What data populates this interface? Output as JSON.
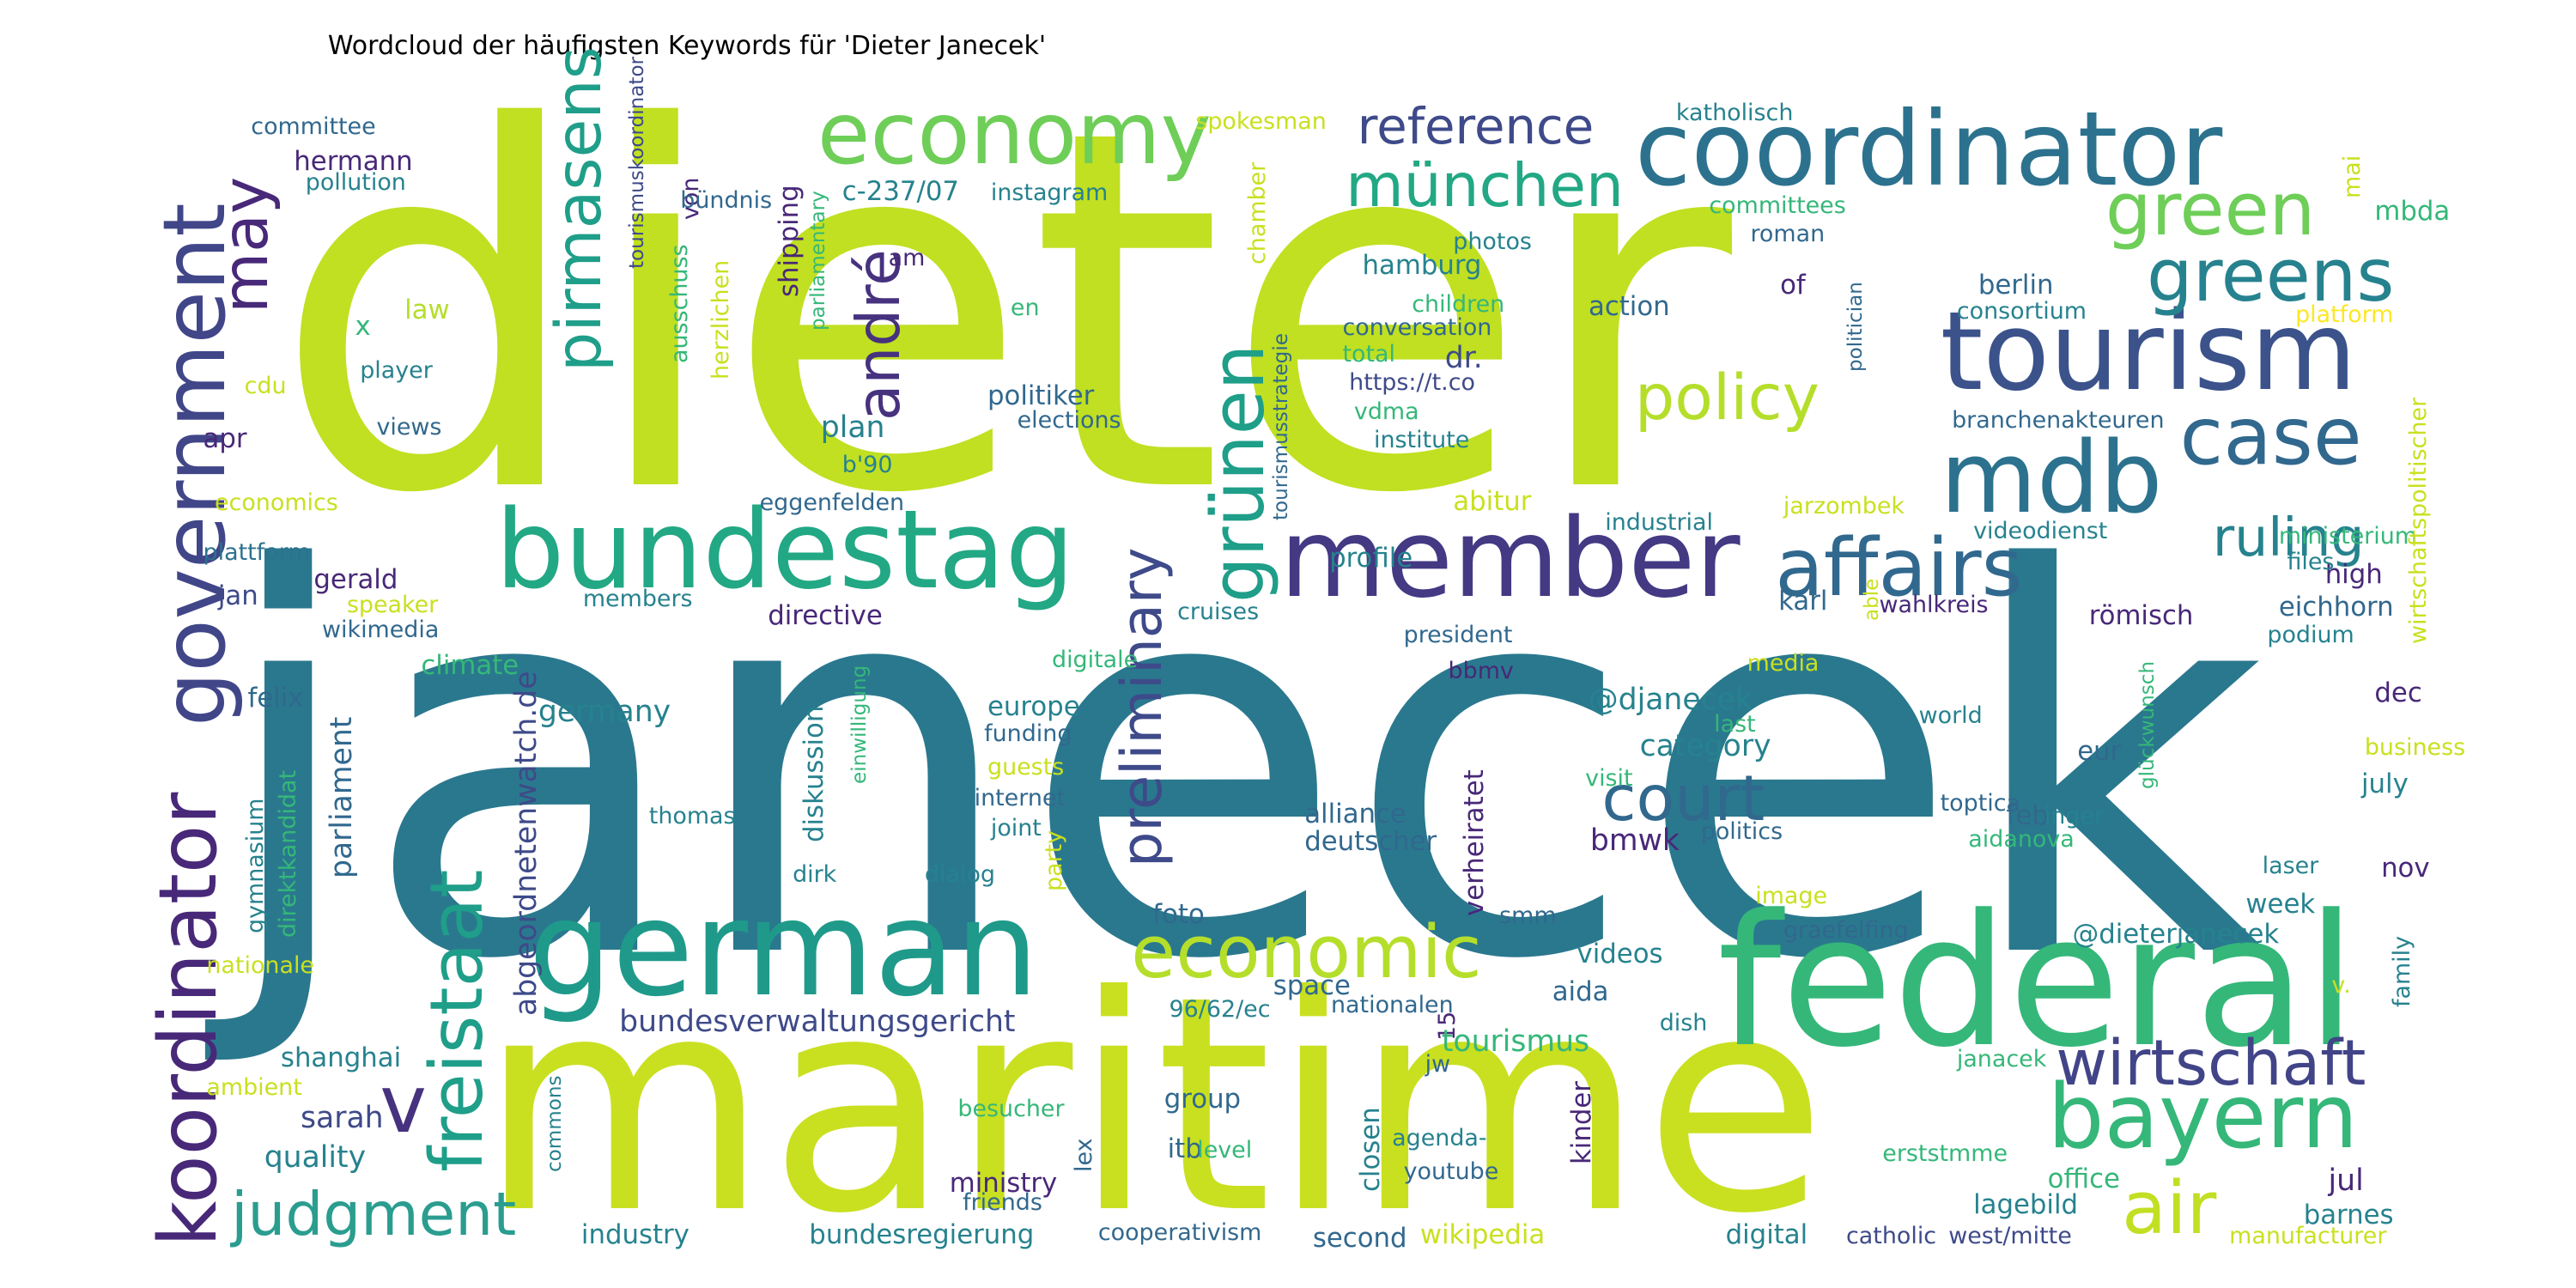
{
  "title": "Wordcloud der häufigsten Keywords für 'Dieter Janecek'",
  "palette": {
    "dark_purple": "#46327e",
    "purple": "#482878",
    "indigo": "#3e4a89",
    "blue": "#31688e",
    "teal": "#26828e",
    "teal_green": "#1f9e89",
    "green": "#35b779",
    "light_green": "#6ece58",
    "lime": "#b5de2b",
    "yellow_green": "#c9e020",
    "yellow": "#fde725"
  },
  "words": [
    {
      "text": "dieter",
      "color": "#c0e021"
    },
    {
      "text": "janecek",
      "color": "#2a788e"
    },
    {
      "text": "maritime",
      "color": "#c9e020"
    },
    {
      "text": "federal",
      "color": "#35b779"
    },
    {
      "text": "coordinator",
      "color": "#2c728e"
    },
    {
      "text": "tourism",
      "color": "#3b528b"
    },
    {
      "text": "bundestag",
      "color": "#22a884"
    },
    {
      "text": "german",
      "color": "#1f9a8a"
    },
    {
      "text": "member",
      "color": "#443983"
    },
    {
      "text": "economy",
      "color": "#6ece58"
    },
    {
      "text": "mdb",
      "color": "#2c728e"
    },
    {
      "text": "government",
      "color": "#404688"
    },
    {
      "text": "koordinator",
      "color": "#482878"
    },
    {
      "text": "freistaat",
      "color": "#1f9e89"
    },
    {
      "text": "affairs",
      "color": "#31688e"
    },
    {
      "text": "bayern",
      "color": "#35b779"
    },
    {
      "text": "green",
      "color": "#6ece58"
    },
    {
      "text": "greens",
      "color": "#26828e"
    },
    {
      "text": "case",
      "color": "#31688e"
    },
    {
      "text": "wirtschaft",
      "color": "#414487"
    },
    {
      "text": "economic",
      "color": "#b5de2b"
    },
    {
      "text": "grünen",
      "color": "#1f9e89"
    },
    {
      "text": "air",
      "color": "#c2df23"
    },
    {
      "text": "policy",
      "color": "#b5de2b"
    },
    {
      "text": "pirmasens",
      "color": "#1f9e89"
    },
    {
      "text": "may",
      "color": "#482878"
    },
    {
      "text": "münchen",
      "color": "#22a884"
    },
    {
      "text": "reference",
      "color": "#3e4a89"
    },
    {
      "text": "ruling",
      "color": "#26828e"
    },
    {
      "text": "judgment",
      "color": "#2a9d8f"
    },
    {
      "text": "preliminary",
      "color": "#3e4a89"
    },
    {
      "text": "court",
      "color": "#31688e"
    },
    {
      "text": "andré",
      "color": "#46327e"
    },
    {
      "text": "v",
      "color": "#46327e"
    },
    {
      "text": "bundesverwaltungsgericht",
      "color": "#3e4a89"
    },
    {
      "text": "committee",
      "color": "#31688e"
    },
    {
      "text": "hermann",
      "color": "#482878"
    },
    {
      "text": "pollution",
      "color": "#26828e"
    },
    {
      "text": "x",
      "color": "#35b779"
    },
    {
      "text": "law",
      "color": "#b5de2b"
    },
    {
      "text": "cdu",
      "color": "#c9e020"
    },
    {
      "text": "player",
      "color": "#26828e"
    },
    {
      "text": "views",
      "color": "#31688e"
    },
    {
      "text": "apr",
      "color": "#482878"
    },
    {
      "text": "economics",
      "color": "#c9e020"
    },
    {
      "text": "plattform",
      "color": "#2c728e"
    },
    {
      "text": "jan",
      "color": "#3e4a89"
    },
    {
      "text": "gerald",
      "color": "#482878"
    },
    {
      "text": "speaker",
      "color": "#c9e020"
    },
    {
      "text": "wikimedia",
      "color": "#31688e"
    },
    {
      "text": "climate",
      "color": "#35b779"
    },
    {
      "text": "felix",
      "color": "#31688e"
    },
    {
      "text": "parliament",
      "color": "#31688e"
    },
    {
      "text": "gymnasium",
      "color": "#26828e"
    },
    {
      "text": "direktkandidat",
      "color": "#35b779"
    },
    {
      "text": "nationale",
      "color": "#c9e020"
    },
    {
      "text": "abgeordnetenwatch.de",
      "color": "#3e4a89"
    },
    {
      "text": "germany",
      "color": "#26828e"
    },
    {
      "text": "shanghai",
      "color": "#26828e"
    },
    {
      "text": "sarah",
      "color": "#3e4a89"
    },
    {
      "text": "quality",
      "color": "#26828e"
    },
    {
      "text": "ambient",
      "color": "#c9e020"
    },
    {
      "text": "commons",
      "color": "#26828e"
    },
    {
      "text": "industry",
      "color": "#26828e"
    },
    {
      "text": "von",
      "color": "#482878"
    },
    {
      "text": "tourismuskoordinator",
      "color": "#3e4a89"
    },
    {
      "text": "ausschuss",
      "color": "#35b779"
    },
    {
      "text": "herzlichen",
      "color": "#c9e020"
    },
    {
      "text": "shipping",
      "color": "#482878"
    },
    {
      "text": "parliamentary",
      "color": "#35b779"
    },
    {
      "text": "bündnis",
      "color": "#31688e"
    },
    {
      "text": "c-237/07",
      "color": "#26828e"
    },
    {
      "text": "instagram",
      "color": "#26828e"
    },
    {
      "text": "am",
      "color": "#482878"
    },
    {
      "text": "en",
      "color": "#35b779"
    },
    {
      "text": "plan",
      "color": "#26828e"
    },
    {
      "text": "b'90",
      "color": "#26828e"
    },
    {
      "text": "politiker",
      "color": "#31688e"
    },
    {
      "text": "elections",
      "color": "#31688e"
    },
    {
      "text": "eggenfelden",
      "color": "#31688e"
    },
    {
      "text": "members",
      "color": "#26828e"
    },
    {
      "text": "directive",
      "color": "#482878"
    },
    {
      "text": "diskussion",
      "color": "#26828e"
    },
    {
      "text": "einwilligung",
      "color": "#35b779"
    },
    {
      "text": "europe",
      "color": "#26828e"
    },
    {
      "text": "funding",
      "color": "#31688e"
    },
    {
      "text": "guests",
      "color": "#c9e020"
    },
    {
      "text": "internet",
      "color": "#31688e"
    },
    {
      "text": "joint",
      "color": "#26828e"
    },
    {
      "text": "thomas",
      "color": "#26828e"
    },
    {
      "text": "dirk",
      "color": "#26828e"
    },
    {
      "text": "dialog",
      "color": "#26828e"
    },
    {
      "text": "party",
      "color": "#c9e020"
    },
    {
      "text": "foto",
      "color": "#31688e"
    },
    {
      "text": "digitale",
      "color": "#35b779"
    },
    {
      "text": "cruises",
      "color": "#26828e"
    },
    {
      "text": "spokesman",
      "color": "#c9e020"
    },
    {
      "text": "chamber",
      "color": "#c9e020"
    },
    {
      "text": "tourismusstrategie",
      "color": "#31688e"
    },
    {
      "text": "hamburg",
      "color": "#26828e"
    },
    {
      "text": "photos",
      "color": "#26828e"
    },
    {
      "text": "children",
      "color": "#35b779"
    },
    {
      "text": "conversation",
      "color": "#31688e"
    },
    {
      "text": "total",
      "color": "#35b779"
    },
    {
      "text": "https://t.co",
      "color": "#3e4a89"
    },
    {
      "text": "vdma",
      "color": "#35b779"
    },
    {
      "text": "institute",
      "color": "#26828e"
    },
    {
      "text": "dr.",
      "color": "#3e4a89"
    },
    {
      "text": "profile",
      "color": "#26828e"
    },
    {
      "text": "abitur",
      "color": "#c9e020"
    },
    {
      "text": "industrial",
      "color": "#26828e"
    },
    {
      "text": "president",
      "color": "#31688e"
    },
    {
      "text": "bbmv",
      "color": "#482878"
    },
    {
      "text": "alliance",
      "color": "#31688e"
    },
    {
      "text": "deutscher",
      "color": "#31688e"
    },
    {
      "text": "bmwk",
      "color": "#482878"
    },
    {
      "text": "verheiratet",
      "color": "#482878"
    },
    {
      "text": "smm",
      "color": "#31688e"
    },
    {
      "text": "space",
      "color": "#31688e"
    },
    {
      "text": "15",
      "color": "#482878"
    },
    {
      "text": "96/62/ec",
      "color": "#26828e"
    },
    {
      "text": "nationalen",
      "color": "#31688e"
    },
    {
      "text": "jw",
      "color": "#31688e"
    },
    {
      "text": "tourismus",
      "color": "#35b779"
    },
    {
      "text": "group",
      "color": "#31688e"
    },
    {
      "text": "besucher",
      "color": "#35b779"
    },
    {
      "text": "itb",
      "color": "#31688e"
    },
    {
      "text": "lex",
      "color": "#31688e"
    },
    {
      "text": "level",
      "color": "#35b779"
    },
    {
      "text": "closen",
      "color": "#26828e"
    },
    {
      "text": "agenda-",
      "color": "#26828e"
    },
    {
      "text": "youtube",
      "color": "#31688e"
    },
    {
      "text": "kinder",
      "color": "#482878"
    },
    {
      "text": "ministry",
      "color": "#482878"
    },
    {
      "text": "friends",
      "color": "#31688e"
    },
    {
      "text": "bundesregierung",
      "color": "#26828e"
    },
    {
      "text": "cooperativism",
      "color": "#31688e"
    },
    {
      "text": "second",
      "color": "#31688e"
    },
    {
      "text": "wikipedia",
      "color": "#c9e020"
    },
    {
      "text": "katholisch",
      "color": "#26828e"
    },
    {
      "text": "committees",
      "color": "#35b779"
    },
    {
      "text": "roman",
      "color": "#31688e"
    },
    {
      "text": "politician",
      "color": "#31688e"
    },
    {
      "text": "of",
      "color": "#482878"
    },
    {
      "text": "action",
      "color": "#31688e"
    },
    {
      "text": "berlin",
      "color": "#31688e"
    },
    {
      "text": "consortium",
      "color": "#26828e"
    },
    {
      "text": "branchenakteuren",
      "color": "#31688e"
    },
    {
      "text": "jarzombek",
      "color": "#c9e020"
    },
    {
      "text": "videodienst",
      "color": "#26828e"
    },
    {
      "text": "wahlkreis",
      "color": "#482878"
    },
    {
      "text": "able",
      "color": "#c9e020"
    },
    {
      "text": "karl",
      "color": "#31688e"
    },
    {
      "text": "media",
      "color": "#c9e020"
    },
    {
      "text": "@djanecek",
      "color": "#26828e"
    },
    {
      "text": "category",
      "color": "#26828e"
    },
    {
      "text": "world",
      "color": "#26828e"
    },
    {
      "text": "visit",
      "color": "#35b779"
    },
    {
      "text": "last",
      "color": "#35b779"
    },
    {
      "text": "eur",
      "color": "#31688e"
    },
    {
      "text": "feb",
      "color": "#31688e"
    },
    {
      "text": "inger",
      "color": "#26828e"
    },
    {
      "text": "politics",
      "color": "#31688e"
    },
    {
      "text": "toptica",
      "color": "#31688e"
    },
    {
      "text": "aidanova",
      "color": "#35b779"
    },
    {
      "text": "image",
      "color": "#c9e020"
    },
    {
      "text": "@dieterjanecek",
      "color": "#26828e"
    },
    {
      "text": "graefelfing",
      "color": "#31688e"
    },
    {
      "text": "videos",
      "color": "#26828e"
    },
    {
      "text": "aida",
      "color": "#31688e"
    },
    {
      "text": "dish",
      "color": "#26828e"
    },
    {
      "text": "janacek",
      "color": "#35b779"
    },
    {
      "text": "erststmme",
      "color": "#35b779"
    },
    {
      "text": "lagebild",
      "color": "#26828e"
    },
    {
      "text": "digital",
      "color": "#26828e"
    },
    {
      "text": "catholic",
      "color": "#3e4a89"
    },
    {
      "text": "west/mitte",
      "color": "#3e4a89"
    },
    {
      "text": "manufacturer",
      "color": "#c9e020"
    },
    {
      "text": "office",
      "color": "#35b779"
    },
    {
      "text": "barnes",
      "color": "#26828e"
    },
    {
      "text": "jul",
      "color": "#482878"
    },
    {
      "text": "v.",
      "color": "#c9e020"
    },
    {
      "text": "family",
      "color": "#26828e"
    },
    {
      "text": "week",
      "color": "#26828e"
    },
    {
      "text": "nov",
      "color": "#482878"
    },
    {
      "text": "laser",
      "color": "#26828e"
    },
    {
      "text": "july",
      "color": "#26828e"
    },
    {
      "text": "business",
      "color": "#c9e020"
    },
    {
      "text": "dec",
      "color": "#482878"
    },
    {
      "text": "glückwunsch",
      "color": "#35b779"
    },
    {
      "text": "eichhorn",
      "color": "#31688e"
    },
    {
      "text": "römisch",
      "color": "#482878"
    },
    {
      "text": "podium",
      "color": "#26828e"
    },
    {
      "text": "high",
      "color": "#482878"
    },
    {
      "text": "files",
      "color": "#26828e"
    },
    {
      "text": "ministerium",
      "color": "#35b779"
    },
    {
      "text": "wirtschaftspolitischer",
      "color": "#c9e020"
    },
    {
      "text": "platform",
      "color": "#fde725"
    },
    {
      "text": "mbda",
      "color": "#35b779"
    },
    {
      "text": "mai",
      "color": "#c9e020"
    }
  ]
}
